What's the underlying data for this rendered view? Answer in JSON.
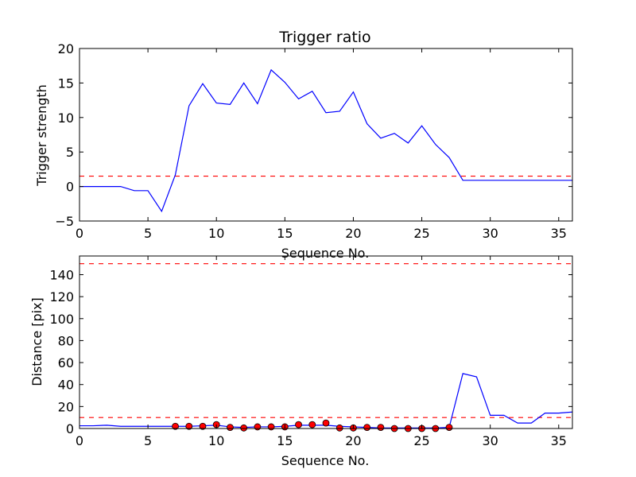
{
  "chart_data": [
    {
      "type": "line",
      "title": "Trigger ratio",
      "xlabel": "Sequence No.",
      "ylabel": "Trigger strength",
      "xlim": [
        0,
        36
      ],
      "ylim": [
        -5,
        20
      ],
      "xticks": [
        "0",
        "5",
        "10",
        "15",
        "20",
        "25",
        "30",
        "35"
      ],
      "yticks": [
        "−5",
        "0",
        "5",
        "10",
        "15",
        "20"
      ],
      "grid": false,
      "colors": {
        "series": "#0000ff",
        "threshold": "#ff0000"
      },
      "series": [
        {
          "style": "solid",
          "x": [
            0,
            1,
            2,
            3,
            4,
            5,
            6,
            7,
            8,
            9,
            10,
            11,
            12,
            13,
            14,
            15,
            16,
            17,
            18,
            19,
            20,
            21,
            22,
            23,
            24,
            25,
            26,
            27,
            28,
            29,
            30,
            31,
            32,
            33,
            34,
            35,
            36
          ],
          "y": [
            0,
            0,
            0,
            0,
            -0.6,
            -0.6,
            -3.6,
            1.7,
            11.7,
            14.9,
            12.1,
            11.9,
            15.0,
            12.0,
            16.9,
            15.1,
            12.7,
            13.8,
            10.7,
            10.9,
            13.7,
            9.1,
            7.0,
            7.7,
            6.3,
            8.8,
            6.1,
            4.2,
            0.9,
            0.9,
            0.9,
            0.9,
            0.9,
            0.9,
            0.9,
            0.9,
            0.9
          ]
        }
      ],
      "hlines": [
        {
          "y": 1.5,
          "style": "dashed"
        }
      ]
    },
    {
      "type": "line",
      "title": "",
      "xlabel": "Sequence No.",
      "ylabel": "Distance [pix]",
      "xlim": [
        0,
        36
      ],
      "ylim": [
        0,
        157
      ],
      "xticks": [
        "0",
        "5",
        "10",
        "15",
        "20",
        "25",
        "30",
        "35"
      ],
      "yticks": [
        "0",
        "20",
        "40",
        "60",
        "80",
        "100",
        "120",
        "140"
      ],
      "grid": false,
      "colors": {
        "series": "#0000ff",
        "markers": "#ff0000",
        "threshold": "#ff0000"
      },
      "series": [
        {
          "style": "solid",
          "x": [
            0,
            1,
            2,
            3,
            4,
            5,
            6,
            7,
            8,
            9,
            10,
            11,
            12,
            13,
            14,
            15,
            16,
            17,
            18,
            19,
            20,
            21,
            22,
            23,
            24,
            25,
            26,
            27,
            28,
            29,
            30,
            31,
            32,
            33,
            34,
            35,
            36
          ],
          "y": [
            2.5,
            2.5,
            3,
            2,
            2,
            2,
            2,
            2,
            2,
            2.5,
            3,
            1.5,
            1,
            1.5,
            1.5,
            2,
            3,
            3,
            3,
            2,
            1.5,
            1,
            0.5,
            0.5,
            0.5,
            0.5,
            0.5,
            1,
            50,
            47,
            12,
            12,
            5,
            5,
            14,
            14,
            15
          ]
        },
        {
          "style": "markers",
          "x": [
            7,
            8,
            9,
            10,
            11,
            12,
            13,
            14,
            15,
            16,
            17,
            18,
            19,
            20,
            21,
            22,
            23,
            24,
            25,
            26,
            27
          ],
          "y": [
            2,
            2,
            2,
            3.5,
            1,
            0.5,
            1.5,
            1.5,
            1.5,
            3.5,
            3.5,
            5,
            0.5,
            0.5,
            1,
            1,
            0,
            0,
            0,
            0,
            1
          ]
        }
      ],
      "hlines": [
        {
          "y": 150,
          "style": "dashed"
        },
        {
          "y": 10,
          "style": "dashed"
        }
      ]
    }
  ]
}
